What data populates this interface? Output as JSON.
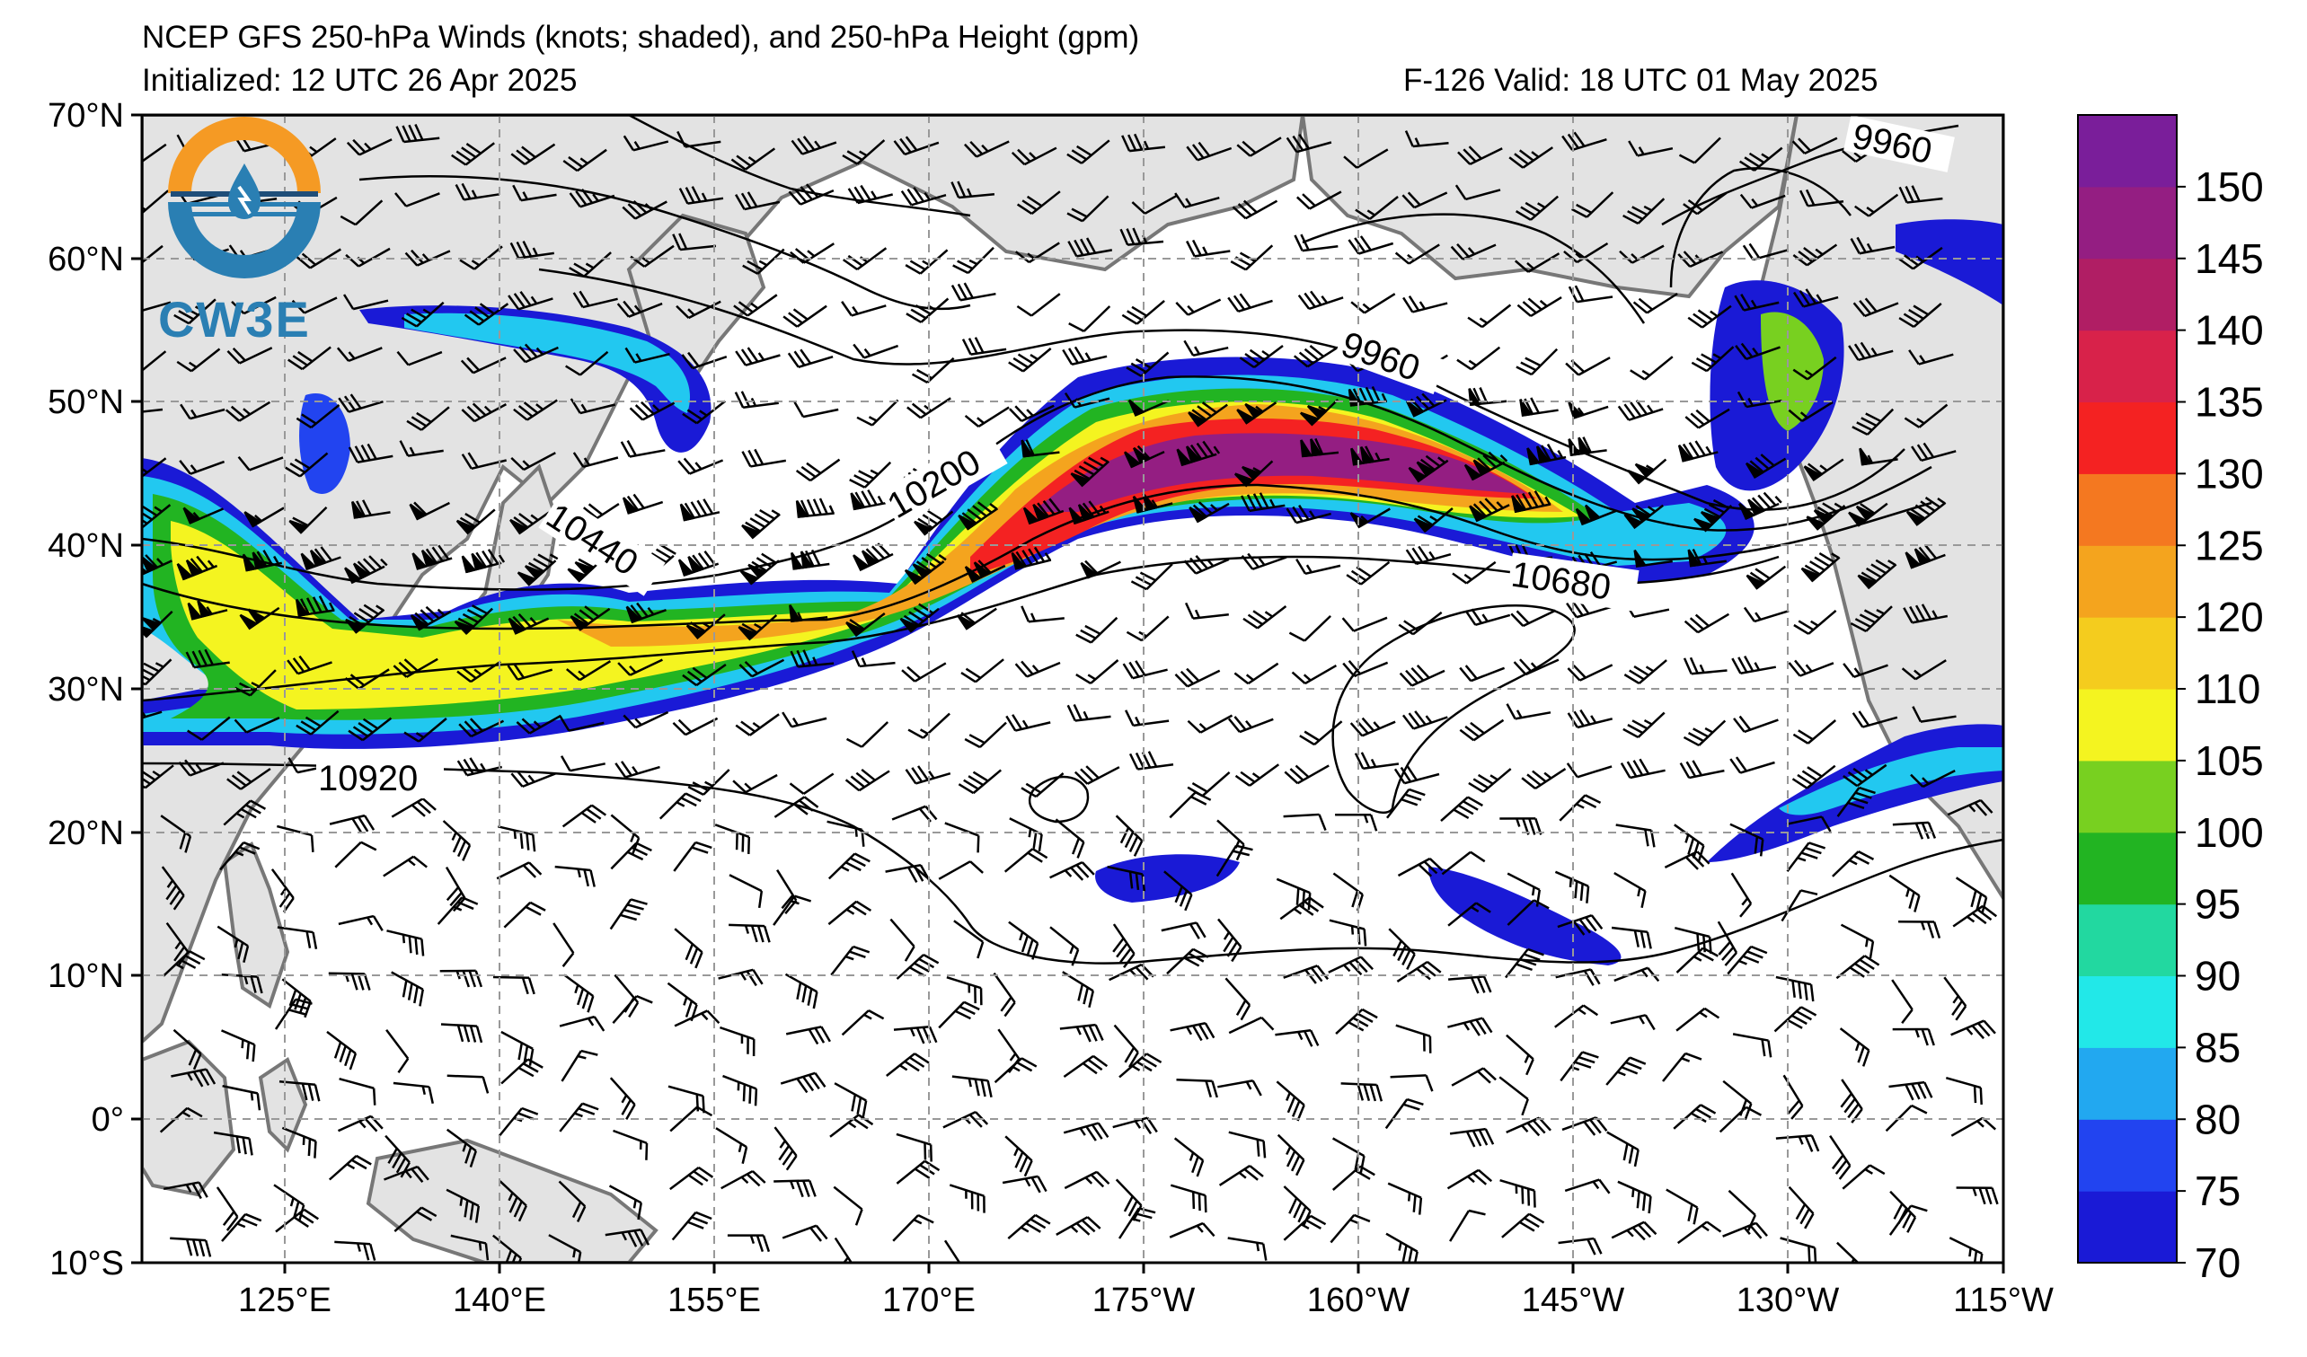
{
  "header": {
    "title": "NCEP GFS 250-hPa Winds (knots; shaded), and 250-hPa Height (gpm)",
    "initialized": "Initialized: 12 UTC 26 Apr 2025",
    "valid": "F-126  Valid: 18 UTC 01 May 2025"
  },
  "logo": {
    "text": "CW3E",
    "colors": {
      "orange": "#f59a24",
      "blue": "#2a7fb3",
      "navy": "#1f4e79"
    }
  },
  "axes": {
    "y_labels": [
      "70°N",
      "60°N",
      "50°N",
      "40°N",
      "30°N",
      "20°N",
      "10°N",
      "0°",
      "10°S"
    ],
    "x_labels": [
      "125°E",
      "140°E",
      "155°E",
      "170°E",
      "175°W",
      "160°W",
      "145°W",
      "130°W",
      "115°W"
    ]
  },
  "contour_labels": [
    "9960",
    "9960",
    "10200",
    "10440",
    "10680",
    "10920"
  ],
  "colorbar": {
    "labels": [
      "70",
      "75",
      "80",
      "85",
      "90",
      "95",
      "100",
      "105",
      "110",
      "120",
      "125",
      "130",
      "135",
      "140",
      "145",
      "150"
    ],
    "colors": [
      "#1a1ad6",
      "#2244f0",
      "#22a8f0",
      "#22e8e8",
      "#22d8a0",
      "#22b422",
      "#78d020",
      "#f4f420",
      "#f4cc1e",
      "#f4a41e",
      "#f47820",
      "#f42222",
      "#d8224a",
      "#b01e64",
      "#941e82",
      "#7a1e9a"
    ]
  },
  "colors": {
    "land": "#e3e3e3",
    "coast": "#777777",
    "grid": "#999999"
  }
}
